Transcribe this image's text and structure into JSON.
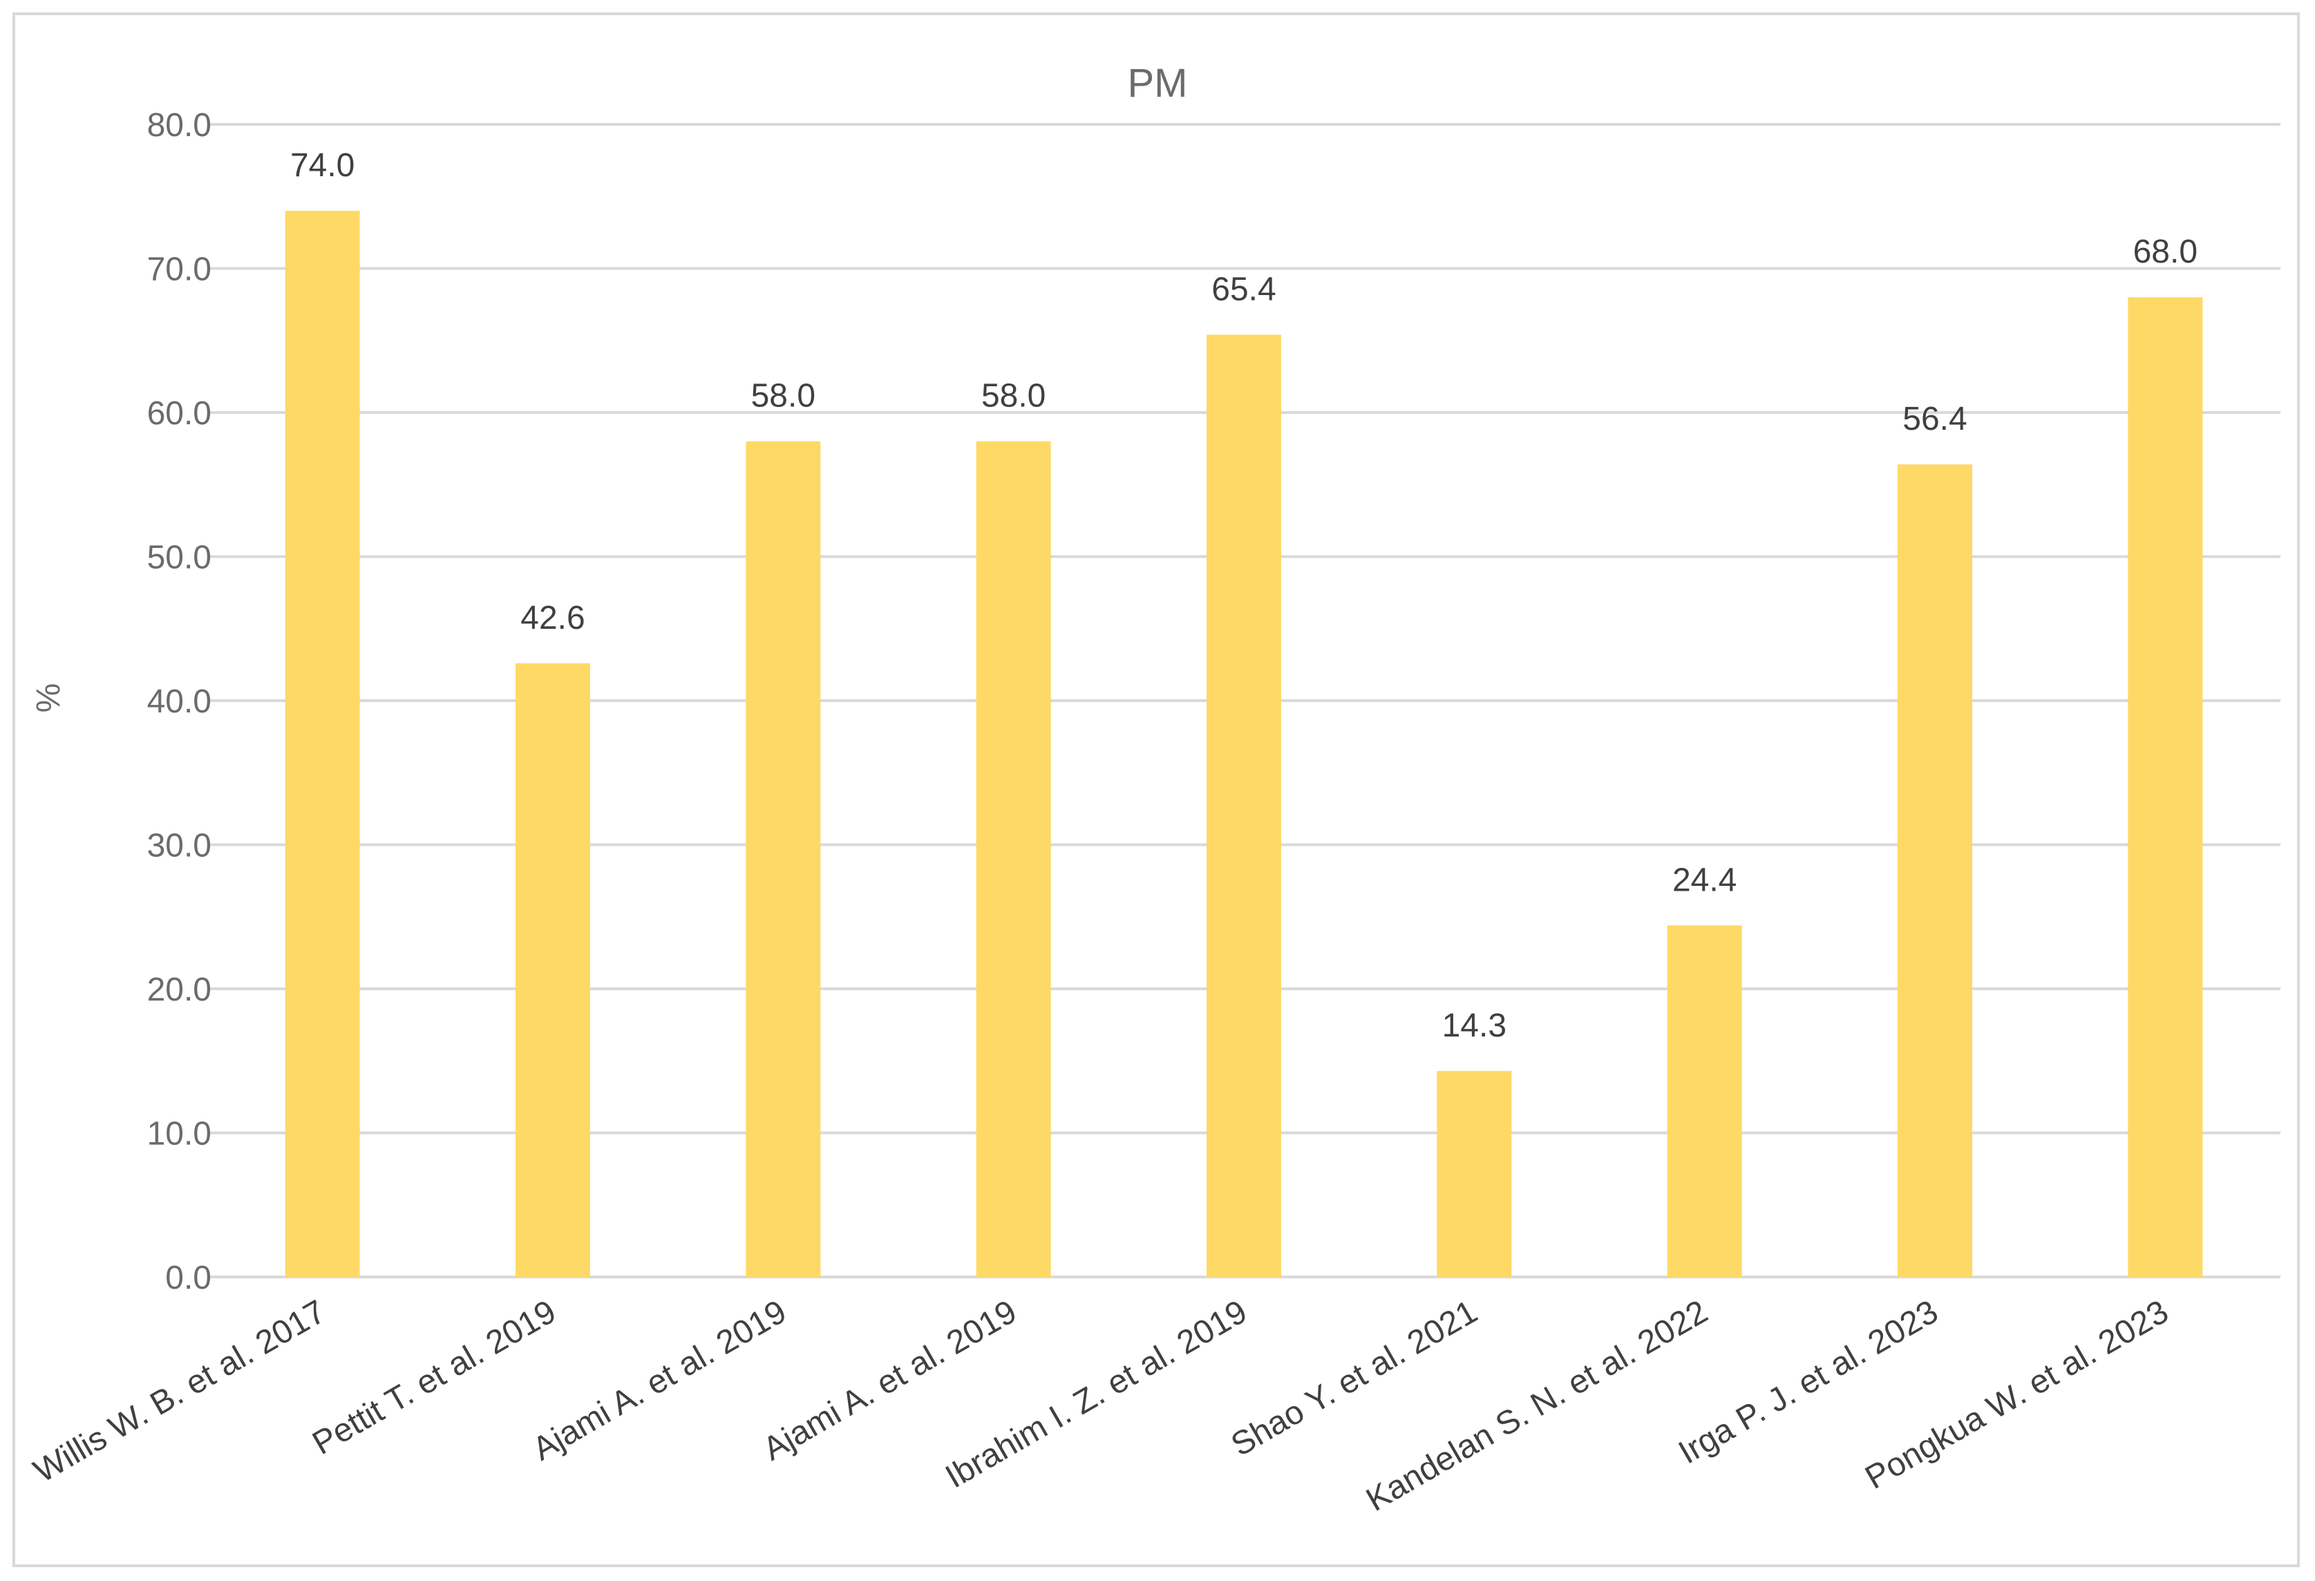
{
  "chart_data": {
    "type": "bar",
    "title": "PM",
    "xlabel": "",
    "ylabel": "%",
    "ylim": [
      0,
      80
    ],
    "yticks": [
      "0.0",
      "10.0",
      "20.0",
      "30.0",
      "40.0",
      "50.0",
      "60.0",
      "70.0",
      "80.0"
    ],
    "grid": true,
    "legend": "none",
    "bar_color": "#ffd966",
    "categories": [
      "Willis W. B. et al. 2017",
      "Pettit T. et al. 2019",
      "Ajami A. et al. 2019",
      "Ajami A. et al. 2019",
      "Ibrahim I. Z. et al. 2019",
      "Shao Y. et al. 2021",
      "Kandelan S. N. et al. 2022",
      "Irga P. J. et al. 2023",
      "Pongkua W. et al. 2023"
    ],
    "values": [
      74.0,
      42.6,
      58.0,
      58.0,
      65.4,
      14.3,
      24.4,
      56.4,
      68.0
    ],
    "data_labels": [
      "74.0",
      "42.6",
      "58.0",
      "58.0",
      "65.4",
      "14.3",
      "24.4",
      "56.4",
      "68.0"
    ]
  }
}
